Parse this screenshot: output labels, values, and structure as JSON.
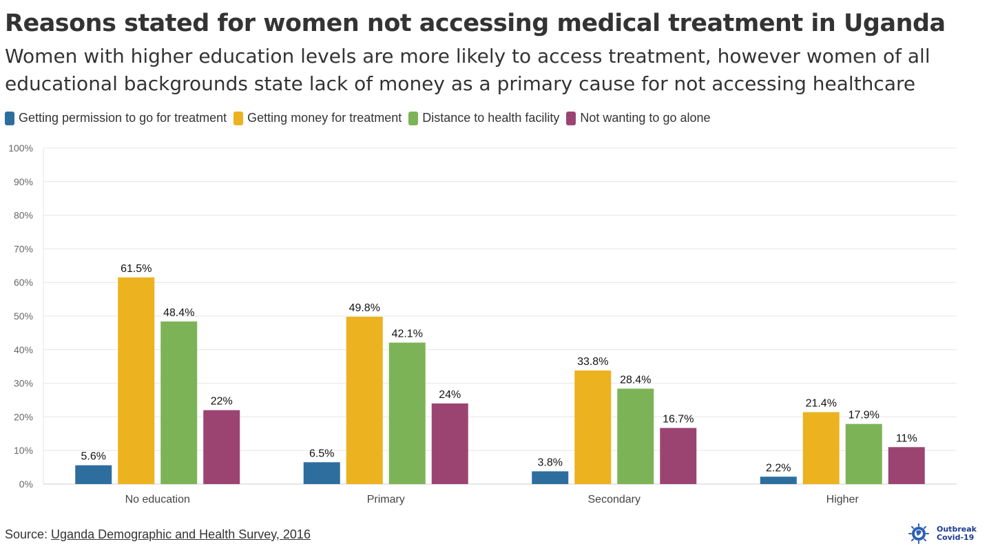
{
  "header": {
    "title": "Reasons stated for women not accessing medical treatment in Uganda",
    "subtitle": "Women with higher education levels are more likely to access treatment, however women of all educational backgrounds state lack of money as a primary cause for not accessing healthcare"
  },
  "chart_data": {
    "type": "bar",
    "title": "Reasons stated for women not accessing medical treatment in Uganda",
    "subtitle": "Women with higher education levels are more likely to access treatment, however women of all educational backgrounds state lack of money as a primary cause for not accessing healthcare",
    "categories": [
      "No education",
      "Primary",
      "Secondary",
      "Higher"
    ],
    "series": [
      {
        "name": "Getting permission to go for treatment",
        "color": "#2e6e9e",
        "values": [
          5.6,
          6.5,
          3.8,
          2.2
        ],
        "labels": [
          "5.6%",
          "6.5%",
          "3.8%",
          "2.2%"
        ]
      },
      {
        "name": "Getting money for treatment",
        "color": "#ecb220",
        "values": [
          61.5,
          49.8,
          33.8,
          21.4
        ],
        "labels": [
          "61.5%",
          "49.8%",
          "33.8%",
          "21.4%"
        ]
      },
      {
        "name": "Distance to health facility",
        "color": "#7db357",
        "values": [
          48.4,
          42.1,
          28.4,
          17.9
        ],
        "labels": [
          "48.4%",
          "42.1%",
          "28.4%",
          "17.9%"
        ]
      },
      {
        "name": "Not wanting to go alone",
        "color": "#9b4472",
        "values": [
          22,
          24,
          16.7,
          11
        ],
        "labels": [
          "22%",
          "24%",
          "16.7%",
          "11%"
        ]
      }
    ],
    "ylim": [
      0,
      100
    ],
    "yticks": [
      "0%",
      "10%",
      "20%",
      "30%",
      "40%",
      "50%",
      "60%",
      "70%",
      "80%",
      "90%",
      "100%"
    ],
    "grid": true,
    "legend": "top-left"
  },
  "footer": {
    "source_prefix": "Source: ",
    "source_link": "Uganda Demographic and Health Survey, 2016"
  },
  "logo": {
    "line1": "Outbreak",
    "line2": "Covid-19",
    "icon": "virus-globe-icon"
  }
}
